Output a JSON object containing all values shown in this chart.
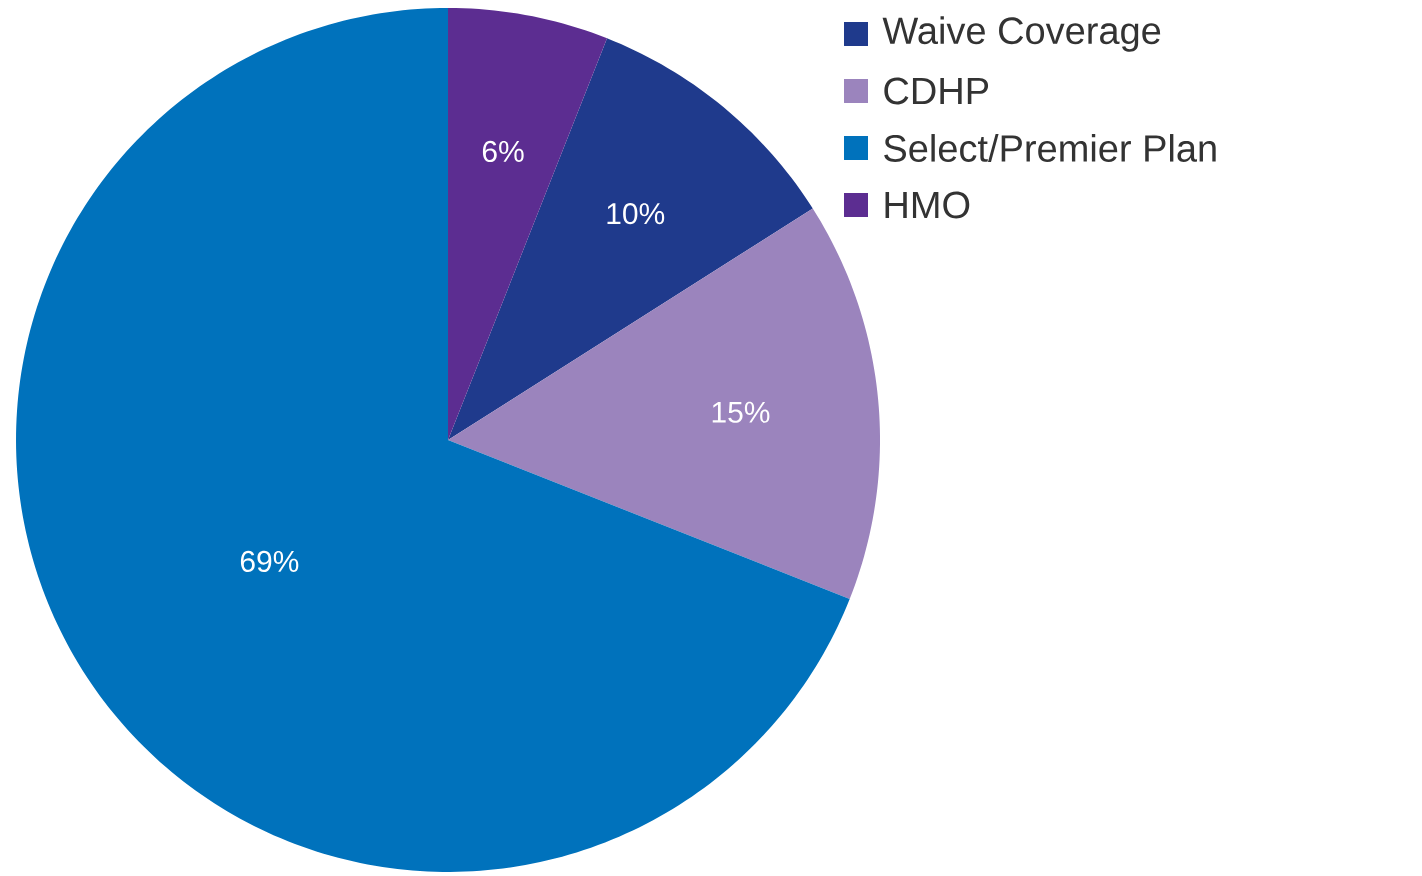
{
  "chart_data": {
    "type": "pie",
    "categories": [
      "Waive Coverage",
      "CDHP",
      "Select/Premier Plan",
      "HMO"
    ],
    "values": [
      10,
      15,
      69,
      6
    ],
    "colors": [
      "#1f3a8c",
      "#9b84bd",
      "#0072bc",
      "#5c2d91"
    ],
    "value_labels": [
      "10%",
      "15%",
      "69%",
      "6%"
    ],
    "legend": "top right"
  }
}
